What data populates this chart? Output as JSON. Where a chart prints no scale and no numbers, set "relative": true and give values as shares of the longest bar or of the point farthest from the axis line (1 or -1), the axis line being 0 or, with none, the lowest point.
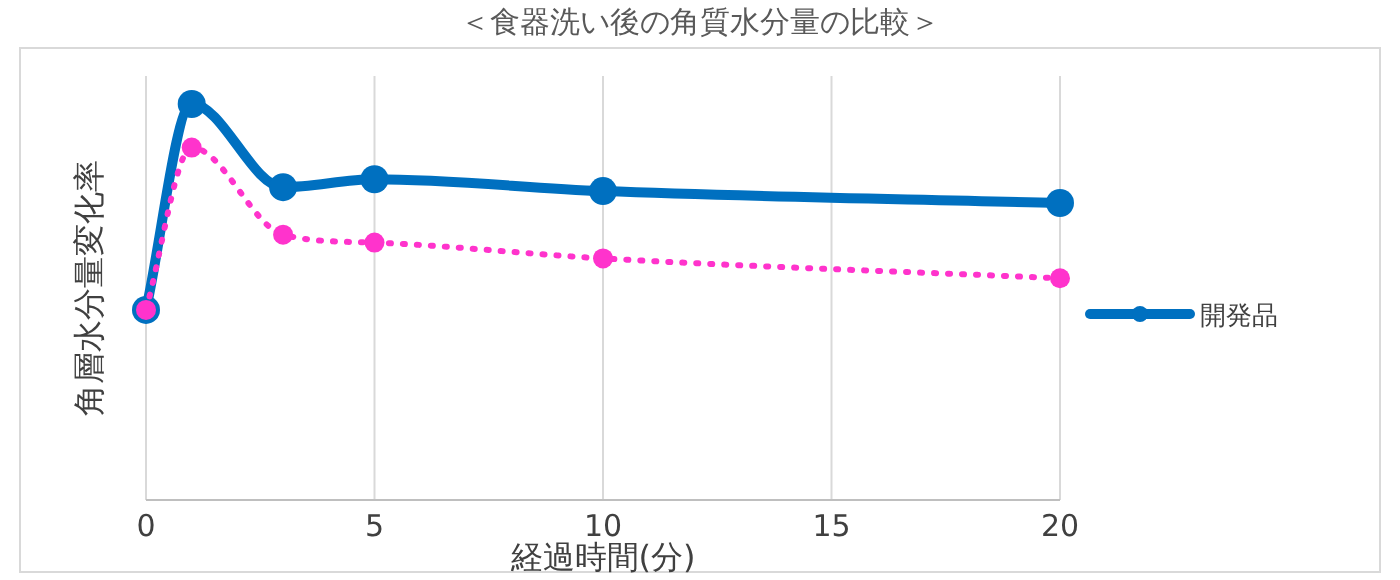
{
  "chart_data": {
    "type": "line",
    "title": "＜食器洗い後の角質水分量の比較＞",
    "xlabel": "経過時間(分)",
    "ylabel": "角層水分量変化率",
    "relative": true,
    "x": [
      0,
      1,
      3,
      5,
      10,
      20
    ],
    "xlim": [
      0,
      20
    ],
    "xticks": [
      0,
      5,
      10,
      15,
      20
    ],
    "grid": "x",
    "legend": "right",
    "marker": "circle",
    "series": [
      {
        "name": "開発品",
        "color": "#0070c0",
        "line_style": "solid",
        "values": [
          0.48,
          1,
          0.79,
          0.81,
          0.78,
          0.75
        ]
      },
      {
        "color": "#ff33cc",
        "line_style": "dotted",
        "values": [
          0.48,
          0.89,
          0.67,
          0.65,
          0.61,
          0.56
        ]
      }
    ]
  }
}
